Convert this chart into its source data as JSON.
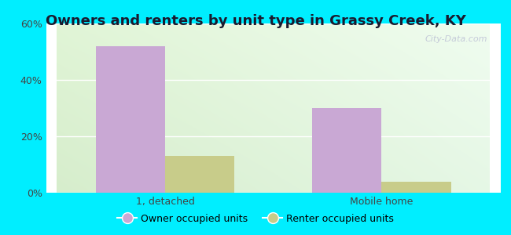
{
  "title": "Owners and renters by unit type in Grassy Creek, KY",
  "categories": [
    "1, detached",
    "Mobile home"
  ],
  "owner_values": [
    52,
    30
  ],
  "renter_values": [
    13,
    4
  ],
  "owner_color": "#c9a8d4",
  "renter_color": "#c8cc8a",
  "ylim": [
    0,
    60
  ],
  "yticks": [
    0,
    20,
    40,
    60
  ],
  "ytick_labels": [
    "0%",
    "20%",
    "40%",
    "60%"
  ],
  "bar_width": 0.32,
  "bg_color_topleft": "#d6efc8",
  "bg_color_topright": "#eef8ee",
  "bg_color_bottom": "#e8f5d8",
  "outer_bg": "#00eeff",
  "legend_owner": "Owner occupied units",
  "legend_renter": "Renter occupied units",
  "watermark": "City-Data.com",
  "title_fontsize": 13,
  "tick_fontsize": 9,
  "legend_fontsize": 9
}
